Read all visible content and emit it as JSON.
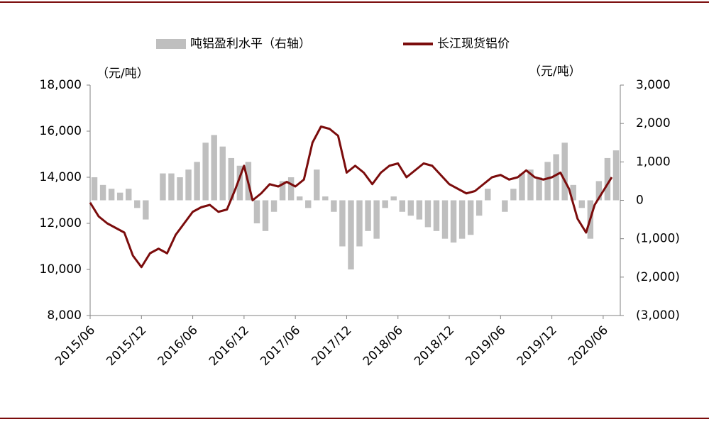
{
  "chart_data": {
    "type": "bar-line",
    "categories": [
      "2015/06",
      null,
      null,
      null,
      null,
      null,
      "2015/12",
      null,
      null,
      null,
      null,
      null,
      "2016/06",
      null,
      null,
      null,
      null,
      null,
      "2016/12",
      null,
      null,
      null,
      null,
      null,
      "2017/06",
      null,
      null,
      null,
      null,
      null,
      "2017/12",
      null,
      null,
      null,
      null,
      null,
      "2018/06",
      null,
      null,
      null,
      null,
      null,
      "2018/12",
      null,
      null,
      null,
      null,
      null,
      "2019/06",
      null,
      null,
      null,
      null,
      null,
      "2019/12",
      null,
      null,
      null,
      null,
      null,
      "2020/06",
      null
    ],
    "series": [
      {
        "name": "吨铝盈利水平（右轴）",
        "type": "bar",
        "axis": "y2",
        "color": "#bfbfbf",
        "values": [
          600,
          400,
          300,
          200,
          300,
          -200,
          -500,
          0,
          700,
          700,
          600,
          800,
          1000,
          1500,
          1700,
          1400,
          1100,
          900,
          1000,
          -600,
          -800,
          -300,
          500,
          600,
          100,
          -200,
          800,
          100,
          -300,
          -1200,
          -1800,
          -1200,
          -800,
          -1000,
          -200,
          100,
          -300,
          -400,
          -500,
          -700,
          -800,
          -1000,
          -1100,
          -1000,
          -900,
          -400,
          300,
          0,
          -300,
          300,
          700,
          800,
          600,
          1000,
          1200,
          1500,
          400,
          -200,
          -1000,
          500,
          1100,
          1300
        ]
      },
      {
        "name": "长江现货铝价",
        "type": "line",
        "color": "#7b0c0c",
        "values": [
          12900,
          12300,
          12000,
          11800,
          11600,
          10600,
          10100,
          10700,
          10900,
          10700,
          11500,
          12000,
          12500,
          12700,
          12800,
          12500,
          12600,
          13500,
          14500,
          13000,
          13300,
          13700,
          13600,
          13800,
          13600,
          13900,
          15500,
          16200,
          16100,
          15800,
          14200,
          14500,
          14200,
          13700,
          14200,
          14500,
          14600,
          14000,
          14300,
          14600,
          14500,
          14100,
          13700,
          13500,
          13300,
          13400,
          13700,
          14000,
          14100,
          13900,
          14000,
          14300,
          14000,
          13900,
          14000,
          14200,
          13500,
          12200,
          11600,
          12800,
          13400,
          14000
        ]
      }
    ],
    "ylim": [
      8000,
      18000
    ],
    "yticks": [
      {
        "value": 8000,
        "label": "8,000"
      },
      {
        "value": 10000,
        "label": "10,000"
      },
      {
        "value": 12000,
        "label": "12,000"
      },
      {
        "value": 14000,
        "label": "14,000"
      },
      {
        "value": 16000,
        "label": "16,000"
      },
      {
        "value": 18000,
        "label": "18,000"
      }
    ],
    "y2lim": [
      -3000,
      3000
    ],
    "y2ticks": [
      {
        "value": -3000,
        "label": "(3,000)"
      },
      {
        "value": -2000,
        "label": "(2,000)"
      },
      {
        "value": -1000,
        "label": "(1,000)"
      },
      0,
      {
        "value": 1000,
        "label": "1,000"
      },
      {
        "value": 2000,
        "label": "2,000"
      },
      {
        "value": 3000,
        "label": "3,000"
      }
    ],
    "y2_negative_label_color": "#ff0000",
    "y_unit": "（元/吨）",
    "y2_unit": "（元/吨）",
    "grid": false,
    "legend": "top"
  }
}
